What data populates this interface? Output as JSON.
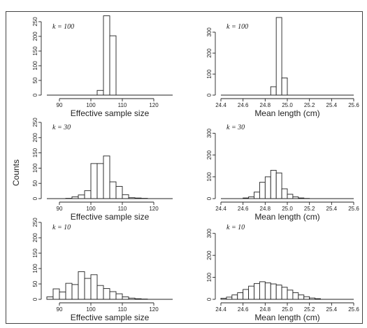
{
  "ylabel": "Counts",
  "chart_data": [
    {
      "type": "bar",
      "k_label": "k = 100",
      "xlabel": "Effective sample size",
      "xlim": [
        86,
        126
      ],
      "ylim": [
        0,
        250
      ],
      "xticks": [
        90,
        100,
        110,
        120
      ],
      "yticks": [
        0,
        50,
        100,
        150,
        200,
        250
      ],
      "bin_width": 2,
      "bins": [
        [
          102,
          16
        ],
        [
          104,
          270
        ],
        [
          106,
          202
        ]
      ]
    },
    {
      "type": "bar",
      "k_label": "k = 100",
      "xlabel": "Mean length (cm)",
      "xlim": [
        24.4,
        25.6
      ],
      "ylim": [
        0,
        350
      ],
      "xticks": [
        "24.4",
        "24.6",
        "24.8",
        "25.0",
        "25.2",
        "25.4",
        "25.6"
      ],
      "yticks": [
        0,
        100,
        200,
        300
      ],
      "bin_width": 0.05,
      "bins": [
        [
          24.85,
          40
        ],
        [
          24.9,
          370
        ],
        [
          24.95,
          82
        ]
      ]
    },
    {
      "type": "bar",
      "k_label": "k = 30",
      "xlabel": "Effective sample size",
      "xlim": [
        86,
        126
      ],
      "ylim": [
        0,
        250
      ],
      "xticks": [
        90,
        100,
        110,
        120
      ],
      "yticks": [
        0,
        50,
        100,
        150,
        200,
        250
      ],
      "bin_width": 2,
      "bins": [
        [
          92,
          1
        ],
        [
          94,
          6
        ],
        [
          96,
          12
        ],
        [
          98,
          26
        ],
        [
          100,
          115
        ],
        [
          102,
          115
        ],
        [
          104,
          140
        ],
        [
          106,
          55
        ],
        [
          108,
          40
        ],
        [
          110,
          13
        ],
        [
          112,
          3
        ],
        [
          114,
          2
        ],
        [
          116,
          1
        ]
      ]
    },
    {
      "type": "bar",
      "k_label": "k = 30",
      "xlabel": "Mean length (cm)",
      "xlim": [
        24.4,
        25.6
      ],
      "ylim": [
        0,
        350
      ],
      "xticks": [
        "24.4",
        "24.6",
        "24.8",
        "25.0",
        "25.2",
        "25.4",
        "25.6"
      ],
      "yticks": [
        0,
        100,
        200,
        300
      ],
      "bin_width": 0.05,
      "bins": [
        [
          24.6,
          3
        ],
        [
          24.65,
          8
        ],
        [
          24.7,
          30
        ],
        [
          24.75,
          75
        ],
        [
          24.8,
          100
        ],
        [
          24.85,
          130
        ],
        [
          24.9,
          118
        ],
        [
          24.95,
          45
        ],
        [
          25.0,
          20
        ],
        [
          25.05,
          8
        ],
        [
          25.1,
          3
        ],
        [
          25.15,
          1
        ]
      ]
    },
    {
      "type": "bar",
      "k_label": "k = 10",
      "xlabel": "Effective sample size",
      "xlim": [
        86,
        126
      ],
      "ylim": [
        0,
        250
      ],
      "xticks": [
        90,
        100,
        110,
        120
      ],
      "yticks": [
        0,
        50,
        100,
        150,
        200,
        250
      ],
      "bin_width": 2,
      "bins": [
        [
          86,
          8
        ],
        [
          88,
          34
        ],
        [
          90,
          24
        ],
        [
          92,
          52
        ],
        [
          94,
          48
        ],
        [
          96,
          90
        ],
        [
          98,
          68
        ],
        [
          100,
          80
        ],
        [
          102,
          45
        ],
        [
          104,
          35
        ],
        [
          106,
          25
        ],
        [
          108,
          18
        ],
        [
          110,
          8
        ],
        [
          112,
          4
        ],
        [
          114,
          2
        ],
        [
          116,
          1
        ]
      ]
    },
    {
      "type": "bar",
      "k_label": "k = 10",
      "xlabel": "Mean length (cm)",
      "xlim": [
        24.4,
        25.6
      ],
      "ylim": [
        0,
        350
      ],
      "xticks": [
        "24.4",
        "24.6",
        "24.8",
        "25.0",
        "25.2",
        "25.4",
        "25.6"
      ],
      "yticks": [
        0,
        100,
        200,
        300
      ],
      "bin_width": 0.05,
      "bins": [
        [
          24.4,
          5
        ],
        [
          24.45,
          10
        ],
        [
          24.5,
          20
        ],
        [
          24.55,
          30
        ],
        [
          24.6,
          45
        ],
        [
          24.65,
          60
        ],
        [
          24.7,
          72
        ],
        [
          24.75,
          80
        ],
        [
          24.8,
          75
        ],
        [
          24.85,
          70
        ],
        [
          24.9,
          65
        ],
        [
          24.95,
          55
        ],
        [
          25.0,
          42
        ],
        [
          25.05,
          30
        ],
        [
          25.1,
          20
        ],
        [
          25.15,
          12
        ],
        [
          25.2,
          6
        ],
        [
          25.25,
          3
        ]
      ]
    }
  ]
}
